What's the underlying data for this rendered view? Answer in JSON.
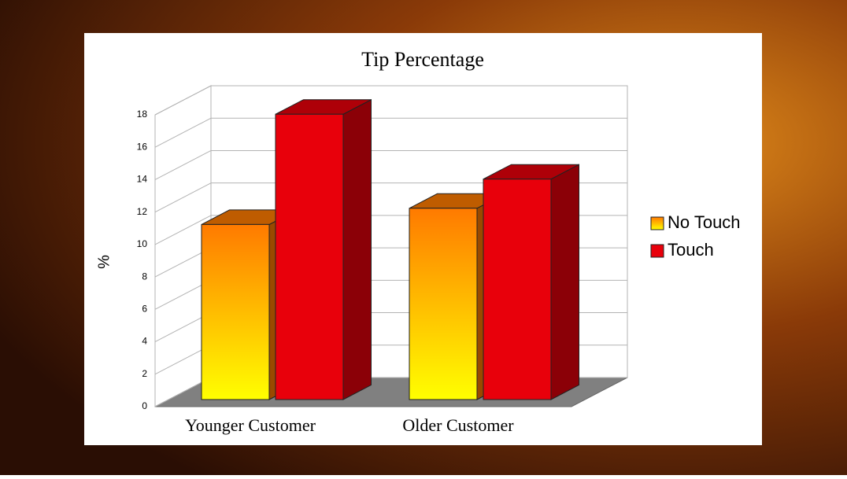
{
  "chart_data": {
    "type": "bar3d",
    "title": "Tip Percentage",
    "y_label": "%",
    "categories": [
      "Younger Customer",
      "Older Customer"
    ],
    "series": [
      {
        "name": "No Touch",
        "color": "#ff7a00",
        "values": [
          10.8,
          11.8
        ]
      },
      {
        "name": "Touch",
        "color": "#e8000b",
        "values": [
          17.6,
          13.6
        ]
      }
    ],
    "ylim": [
      0,
      18
    ],
    "yticks": [
      0,
      2,
      4,
      6,
      8,
      10,
      12,
      14,
      16,
      18
    ],
    "grid": true,
    "legend": "right"
  }
}
